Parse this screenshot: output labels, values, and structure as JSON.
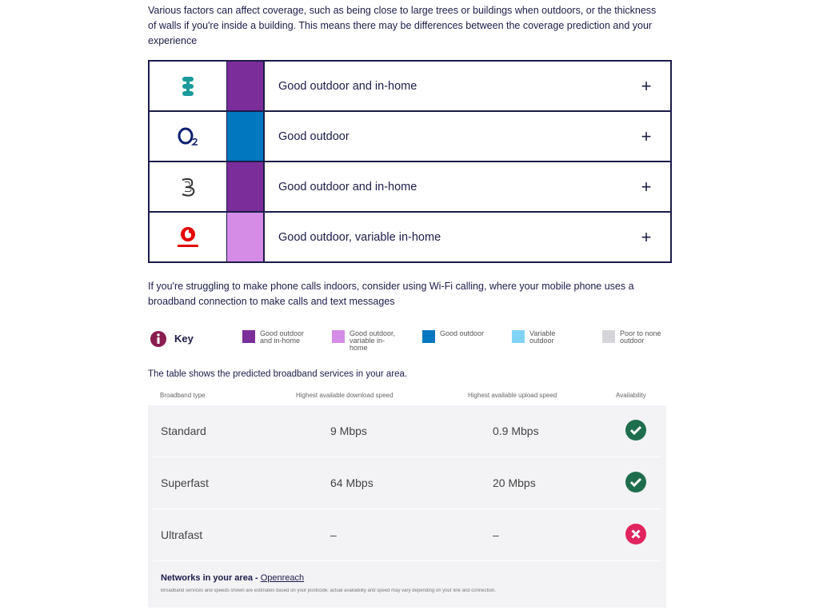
{
  "intro": "Various factors can affect coverage, such as being close to large trees or buildings when outdoors, or the thickness of walls if you're inside a building. This means there may be differences between the coverage prediction and your experience",
  "coverage": [
    {
      "operator": "EE",
      "color": "#7b2d9a",
      "label": "Good outdoor and in-home"
    },
    {
      "operator": "O2",
      "color": "#0077be",
      "label": "Good outdoor"
    },
    {
      "operator": "Three",
      "color": "#7b2d9a",
      "label": "Good outdoor and in-home"
    },
    {
      "operator": "Vodafone",
      "color": "#d48ce6",
      "label": "Good outdoor, variable in-home"
    }
  ],
  "wifi_note": "If you're struggling to make phone calls indoors, consider using Wi-Fi calling, where your mobile phone uses a broadband connection to make calls and text messages",
  "key": {
    "title": "Key",
    "items": [
      {
        "label": "Good outdoor and in-home",
        "color": "#7b2d9a"
      },
      {
        "label": "Good outdoor, variable in-home",
        "color": "#d48ce6"
      },
      {
        "label": "Good outdoor",
        "color": "#0077be"
      },
      {
        "label": "Variable outdoor",
        "color": "#7fd4f5"
      },
      {
        "label": "Poor to none outdoor",
        "color": "#d6d6da"
      }
    ]
  },
  "broadband": {
    "intro": "The table shows the predicted broadband services in your area.",
    "headers": [
      "Broadband type",
      "Highest available download speed",
      "Highest available upload speed",
      "Availability"
    ],
    "rows": [
      {
        "type": "Standard",
        "download": "9 Mbps",
        "upload": "0.9 Mbps",
        "available": true
      },
      {
        "type": "Superfast",
        "download": "64 Mbps",
        "upload": "20 Mbps",
        "available": true
      },
      {
        "type": "Ultrafast",
        "download": "–",
        "upload": "–",
        "available": false
      }
    ],
    "networks_label": "Networks in your area - ",
    "networks_link": "Openreach",
    "footnote": "Broadband services and speeds shown are estimates based on your postcode; actual availability and speed may vary depending on your line and connection."
  }
}
